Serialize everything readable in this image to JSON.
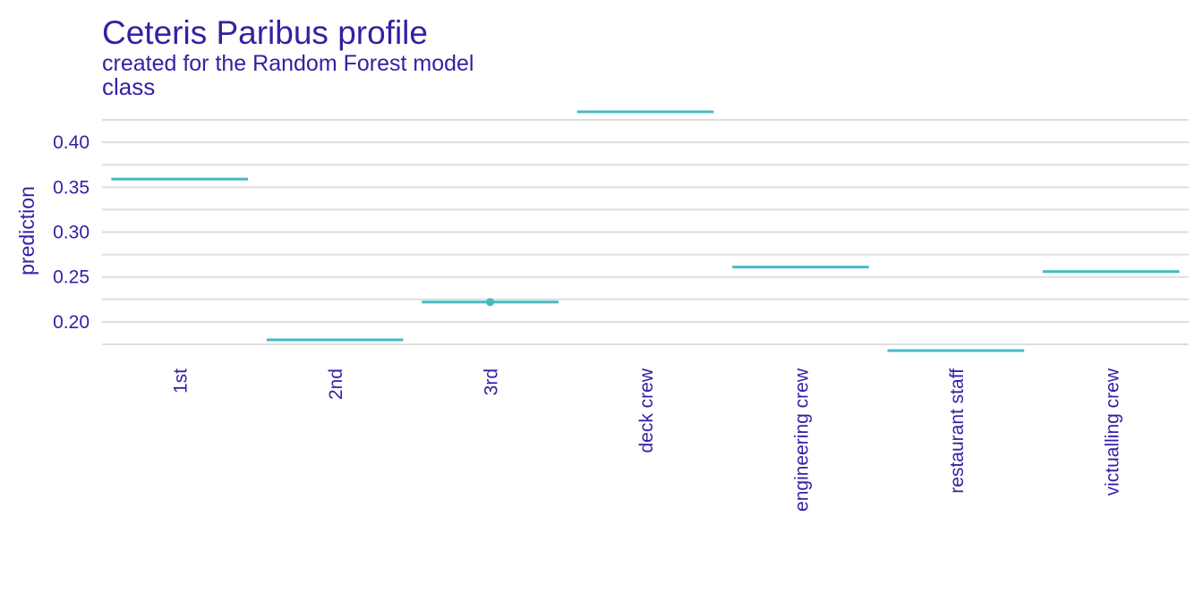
{
  "colors": {
    "text": "#371ea3",
    "series": "#46bac2",
    "grid": "#dedede",
    "background": "#ffffff"
  },
  "chart_data": {
    "type": "line",
    "title": "Ceteris Paribus profile",
    "subtitle": "created for the Random Forest model",
    "panel_title": "class",
    "xlabel": "",
    "ylabel": "prediction",
    "ylim": [
      0.165,
      0.437
    ],
    "y_ticks": [
      0.2,
      0.25,
      0.3,
      0.35,
      0.4
    ],
    "y_tick_labels": [
      "0.20",
      "0.25",
      "0.30",
      "0.35",
      "0.40"
    ],
    "y_minor_ticks": [
      0.175,
      0.225,
      0.275,
      0.325,
      0.375,
      0.425
    ],
    "grid": true,
    "categories": [
      "1st",
      "2nd",
      "3rd",
      "deck crew",
      "engineering crew",
      "restaurant staff",
      "victualling crew"
    ],
    "values": [
      0.359,
      0.18,
      0.222,
      0.434,
      0.261,
      0.168,
      0.256
    ],
    "observed": {
      "category": "3rd",
      "value": 0.222
    }
  }
}
